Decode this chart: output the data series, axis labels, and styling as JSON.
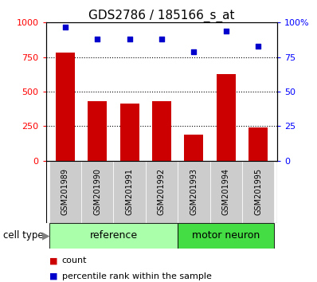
{
  "title": "GDS2786 / 185166_s_at",
  "samples": [
    "GSM201989",
    "GSM201990",
    "GSM201991",
    "GSM201992",
    "GSM201993",
    "GSM201994",
    "GSM201995"
  ],
  "counts": [
    780,
    430,
    415,
    430,
    190,
    630,
    240
  ],
  "percentiles": [
    97,
    88,
    88,
    88,
    79,
    94,
    83
  ],
  "bar_color": "#cc0000",
  "dot_color": "#0000cc",
  "ylim_left": [
    0,
    1000
  ],
  "ylim_right": [
    0,
    100
  ],
  "yticks_left": [
    0,
    250,
    500,
    750,
    1000
  ],
  "yticks_right": [
    0,
    25,
    50,
    75,
    100
  ],
  "ytick_labels_left": [
    "0",
    "250",
    "500",
    "750",
    "1000"
  ],
  "ytick_labels_right": [
    "0",
    "25",
    "50",
    "75",
    "100%"
  ],
  "ref_color": "#aaffaa",
  "mot_color": "#44dd44",
  "ref_label": "reference",
  "mot_label": "motor neuron",
  "ref_count": 4,
  "mot_count": 3,
  "cell_type_label": "cell type",
  "arrow": "▶",
  "legend_count_label": "count",
  "legend_percentile_label": "percentile rank within the sample",
  "title_fontsize": 11,
  "tick_fontsize": 8,
  "sample_fontsize": 7,
  "group_fontsize": 9,
  "sample_box_color": "#cccccc",
  "gridline_yticks": [
    250,
    500,
    750
  ]
}
